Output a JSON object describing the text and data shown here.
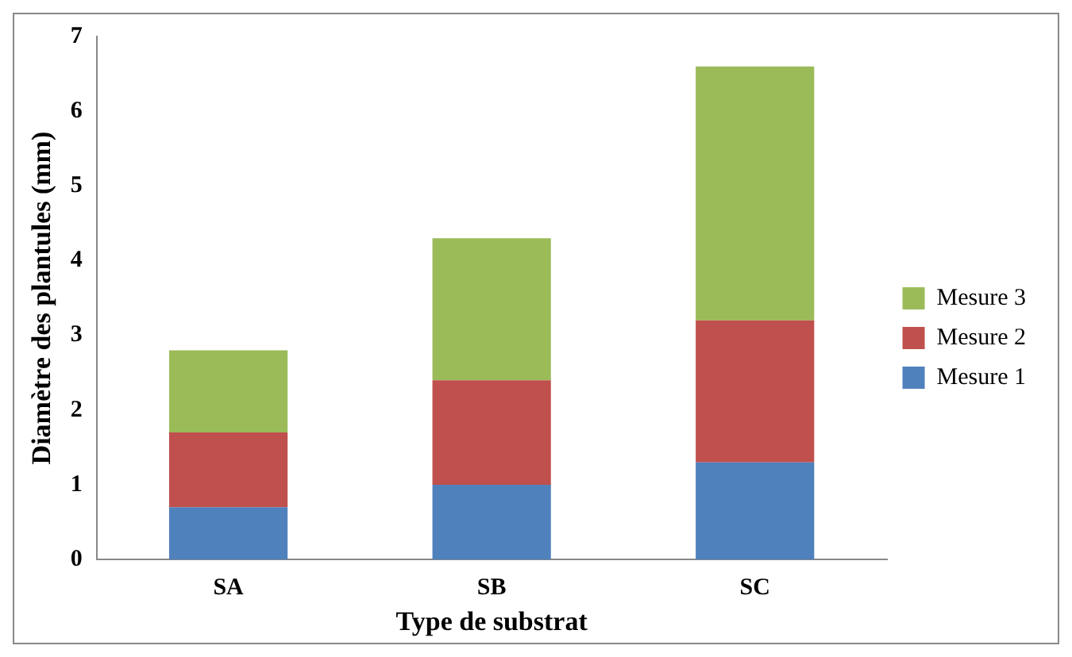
{
  "chart_data": {
    "type": "bar",
    "stacked": true,
    "xlabel": "Type de substrat",
    "ylabel": "Diamètre des plantules (mm)",
    "categories": [
      "SA",
      "SB",
      "SC"
    ],
    "series": [
      {
        "name": "Mesure 1",
        "color": "#4f81bd",
        "values": [
          0.7,
          1.0,
          1.3
        ]
      },
      {
        "name": "Mesure 2",
        "color": "#c0504d",
        "values": [
          1.0,
          1.4,
          1.9
        ]
      },
      {
        "name": "Mesure 3",
        "color": "#9bbb59",
        "values": [
          1.1,
          1.9,
          3.4
        ]
      }
    ],
    "ylim": [
      0,
      7
    ],
    "yticks": [
      0,
      1,
      2,
      3,
      4,
      5,
      6,
      7
    ],
    "grid": false,
    "legend": "right"
  }
}
